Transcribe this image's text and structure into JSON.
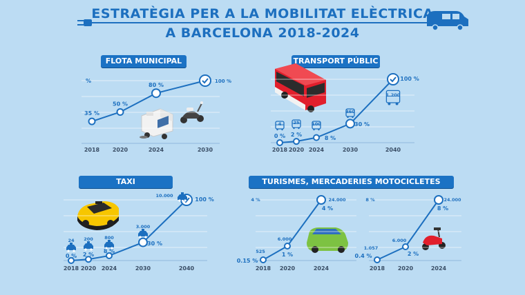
{
  "title_line1": "ESTRATÈGIA PER A LA MOBILITAT ELÈCTRICA",
  "title_line2": "A BARCELONA 2018-2024",
  "panels": [
    {
      "header": "FLOTA MUNICIPAL"
    },
    {
      "header": "TRANSPORT PÚBLIC"
    },
    {
      "header": "TAXI"
    },
    {
      "header": "TURISMES, MERCADERIES MOTOCICLETES"
    }
  ],
  "colors": {
    "line": "#1c6fbf",
    "header_bg": "#1b72c4",
    "background": "#bcdcf3"
  },
  "chart_data": [
    {
      "type": "line",
      "id": "flota",
      "ylabel": "%",
      "x": [
        "2018",
        "2020",
        "2024",
        "2030"
      ],
      "values": [
        35,
        50,
        80,
        100
      ],
      "value_labels": [
        "35 %",
        "50 %",
        "80 %",
        "100 %"
      ],
      "completed_marker": "check-icon"
    },
    {
      "type": "line",
      "id": "transport",
      "x": [
        "2018",
        "2020",
        "2024",
        "2030",
        "2040"
      ],
      "values": [
        0,
        2,
        8,
        30,
        100
      ],
      "value_labels": [
        "0 %",
        "2 %",
        "8 %",
        "30 %",
        "100 %"
      ],
      "counts": [
        "4",
        "25",
        "100",
        "360",
        "1.200"
      ],
      "count_icon": "bus-icon",
      "completed_marker": "check-icon"
    },
    {
      "type": "line",
      "id": "taxi",
      "x": [
        "2018",
        "2020",
        "2024",
        "2030",
        "2040"
      ],
      "values": [
        0,
        2,
        8,
        30,
        100
      ],
      "value_labels": [
        "0 %",
        "2 %",
        "8 %",
        "30 %",
        "100 %"
      ],
      "counts": [
        "24",
        "200",
        "800",
        "3.000",
        "10.000"
      ],
      "count_icon": "taxi-icon",
      "completed_marker": "check-icon"
    },
    {
      "type": "line",
      "id": "turismes",
      "ylabel": "4 %",
      "x": [
        "2018",
        "2020",
        "2024"
      ],
      "values": [
        0.15,
        1,
        4
      ],
      "value_labels": [
        "0.15 %",
        "1 %",
        "4 %"
      ],
      "counts": [
        "525",
        "6.000",
        "24.000"
      ]
    },
    {
      "type": "line",
      "id": "motocicletes",
      "ylabel": "8 %",
      "x": [
        "2018",
        "2020",
        "2024"
      ],
      "values": [
        0.4,
        2,
        8
      ],
      "value_labels": [
        "0.4 %",
        "2 %",
        "8 %"
      ],
      "counts": [
        "1.057",
        "6.000",
        "24.000"
      ]
    }
  ]
}
